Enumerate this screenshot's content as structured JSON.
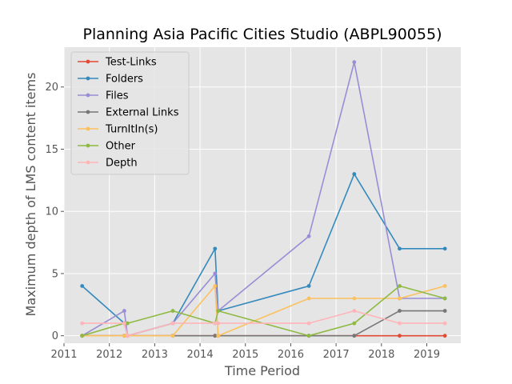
{
  "chart_data": {
    "type": "line",
    "title": "Planning Asia Pacific Cities Studio (ABPL90055)",
    "xlabel": "Time Period",
    "ylabel": "Maximum depth of LMS content items",
    "xlim": [
      2011,
      2019.75
    ],
    "ylim": [
      -0.6,
      23.2
    ],
    "x_ticks": [
      2011,
      2012,
      2013,
      2014,
      2015,
      2016,
      2017,
      2018,
      2019
    ],
    "y_ticks": [
      0,
      5,
      10,
      15,
      20
    ],
    "grid": true,
    "background": "#e5e5e5",
    "legend_position": "upper left",
    "x": [
      2011.4,
      2012.33,
      2012.4,
      2013.4,
      2014.33,
      2014.4,
      2016.4,
      2017.4,
      2018.4,
      2019.4
    ],
    "series": [
      {
        "name": "Test-Links",
        "color": "#e24a33",
        "values": [
          0,
          0,
          0,
          0,
          0,
          0,
          0,
          0,
          0,
          0
        ]
      },
      {
        "name": "Folders",
        "color": "#348abd",
        "values": [
          4,
          1,
          0,
          1,
          7,
          2,
          4,
          13,
          7,
          7
        ]
      },
      {
        "name": "Files",
        "color": "#988ed5",
        "values": [
          0,
          2,
          0,
          1,
          5,
          2,
          8,
          22,
          3,
          3
        ]
      },
      {
        "name": "External Links",
        "color": "#777777",
        "values": [
          0,
          0,
          0,
          0,
          0,
          0,
          0,
          0,
          2,
          2
        ]
      },
      {
        "name": "TurnItIn(s)",
        "color": "#fbc15e",
        "values": [
          0,
          0,
          0,
          0,
          4,
          0,
          3,
          3,
          3,
          4
        ]
      },
      {
        "name": "Other",
        "color": "#8eba42",
        "values": [
          0,
          1,
          1,
          2,
          1,
          2,
          0,
          1,
          4,
          3
        ]
      },
      {
        "name": "Depth",
        "color": "#ffb5b8",
        "values": [
          1,
          1,
          0,
          1,
          1,
          1,
          1,
          2,
          1,
          1
        ]
      }
    ]
  }
}
